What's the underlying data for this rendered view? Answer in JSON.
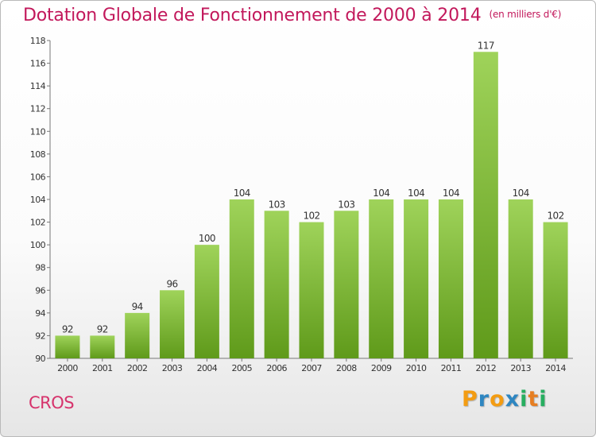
{
  "title": "Dotation Globale de Fonctionnement de 2000 à 2014",
  "subtitle": "(en milliers d'€)",
  "commune": "CROS",
  "logo": {
    "letters": [
      "P",
      "r",
      "o",
      "x",
      "i",
      "t",
      "i"
    ],
    "colors": [
      "#f39c12",
      "#2e86c1",
      "#f39c12",
      "#2e86c1",
      "#27ae60",
      "#e67e22",
      "#27ae60"
    ]
  },
  "chart_data": {
    "type": "bar",
    "title": "Dotation Globale de Fonctionnement de 2000 à 2014",
    "subtitle": "(en milliers d'€)",
    "categories": [
      "2000",
      "2001",
      "2002",
      "2003",
      "2004",
      "2005",
      "2006",
      "2007",
      "2008",
      "2009",
      "2010",
      "2011",
      "2012",
      "2013",
      "2014"
    ],
    "values": [
      92,
      92,
      94,
      96,
      100,
      104,
      103,
      102,
      103,
      104,
      104,
      104,
      117,
      104,
      102
    ],
    "ylim": [
      90,
      118
    ],
    "yticks": [
      90,
      92,
      94,
      96,
      98,
      100,
      102,
      104,
      106,
      108,
      110,
      112,
      114,
      116,
      118
    ],
    "grid": false,
    "bar_color": "#7cc043"
  }
}
